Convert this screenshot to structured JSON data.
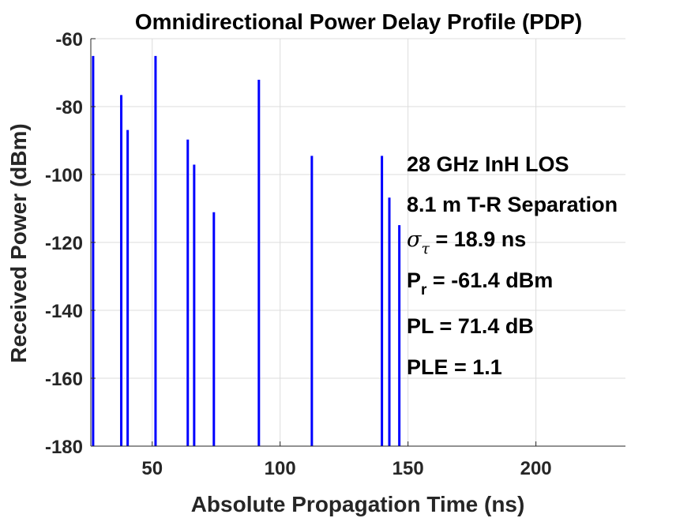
{
  "chart_data": {
    "type": "stem",
    "title": "Omnidirectional Power Delay Profile (PDP)",
    "xlabel": "Absolute Propagation Time (ns)",
    "ylabel": "Received Power (dBm)",
    "xlim": [
      26,
      235
    ],
    "ylim": [
      -180,
      -60
    ],
    "xticks": [
      50,
      100,
      150,
      200
    ],
    "yticks": [
      -60,
      -80,
      -100,
      -120,
      -140,
      -160,
      -180
    ],
    "grid": true,
    "series": [
      {
        "name": "PDP",
        "color": "#0000ff",
        "x": [
          26.9,
          37.9,
          40.4,
          51.3,
          63.9,
          66.4,
          74.1,
          91.7,
          112.4,
          139.8,
          142.7,
          146.6
        ],
        "y": [
          -65.1,
          -76.6,
          -86.9,
          -65.1,
          -89.7,
          -97.1,
          -111.1,
          -72.1,
          -94.5,
          -94.5,
          -106.8,
          -114.9
        ]
      }
    ],
    "annotations": {
      "scenario": "28 GHz InH LOS",
      "separation": "8.1 m T-R Separation",
      "delay_spread": {
        "symbol": "σ",
        "subscript": "τ",
        "text": " = 18.9 ns"
      },
      "received_power": {
        "symbol": "P",
        "subscript": "r",
        "text": " = -61.4 dBm"
      },
      "path_loss": "PL = 71.4 dB",
      "ple": "PLE = 1.1"
    }
  }
}
